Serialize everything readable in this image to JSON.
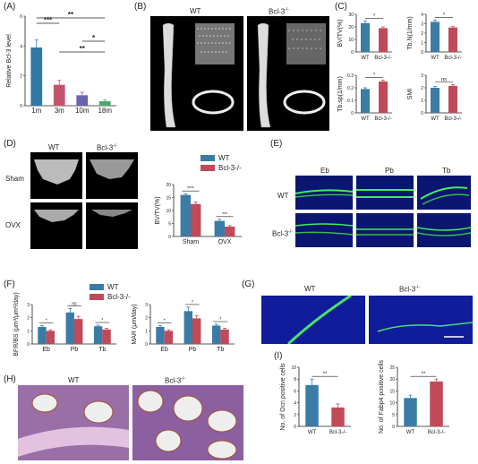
{
  "colors": {
    "wt": "#3a7ca5",
    "ko": "#c04a5a",
    "a1": "#2f78a8",
    "a2": "#c2556b",
    "a3": "#6a63b0",
    "a4": "#4aa86a"
  },
  "panel_labels": {
    "A": "(A)",
    "B": "(B)",
    "C": "(C)",
    "D": "(D)",
    "E": "(E)",
    "F": "(F)",
    "G": "(G)",
    "H": "(H)",
    "I": "(I)"
  },
  "common": {
    "wt": "WT",
    "ko": "Bcl-3",
    "ko_sup": "-/-"
  },
  "B": {
    "wt": "WT",
    "ko": "Bcl-3"
  },
  "D": {
    "col_wt": "WT",
    "col_ko": "Bcl-3",
    "row1": "Sham",
    "row2": "OVX"
  },
  "E": {
    "cols": [
      "Eb",
      "Pb",
      "Tb"
    ],
    "row1": "WT",
    "row2": "Bcl-3"
  },
  "G": {
    "wt": "WT",
    "ko": "Bcl-3"
  },
  "H": {
    "wt": "WT",
    "ko": "Bcl-3"
  },
  "legend": {
    "wt": "WT",
    "ko": "Bcl-3-/-"
  },
  "chart_data": [
    {
      "panel": "A",
      "type": "bar",
      "categories": [
        "1m",
        "3m",
        "10m",
        "18m"
      ],
      "values": [
        3.9,
        1.4,
        0.7,
        0.3
      ],
      "errors": [
        0.5,
        0.3,
        0.2,
        0.1
      ],
      "ylabel": "Relative Bcl-3 level",
      "ylim": [
        0,
        6
      ],
      "yticks": [
        0,
        2,
        4,
        6
      ],
      "sig": [
        "**",
        "***",
        "**",
        "*"
      ]
    },
    {
      "panel": "C1",
      "type": "bar",
      "categories": [
        "WT",
        "Bcl-3-/-"
      ],
      "values": [
        23,
        19
      ],
      "errors": [
        1.5,
        1
      ],
      "ylabel": "BV/TV(%)",
      "ylim": [
        0,
        30
      ],
      "yticks": [
        0,
        10,
        20,
        30
      ],
      "sig": [
        "*"
      ]
    },
    {
      "panel": "C2",
      "type": "bar",
      "categories": [
        "WT",
        "Bcl-3-/-"
      ],
      "values": [
        3.2,
        2.6
      ],
      "errors": [
        0.2,
        0.1
      ],
      "ylabel": "Tb.N(1/mm)",
      "ylim": [
        0,
        4
      ],
      "yticks": [
        0,
        1,
        2,
        3,
        4
      ],
      "sig": [
        "*"
      ]
    },
    {
      "panel": "C3",
      "type": "bar",
      "categories": [
        "WT",
        "Bcl-3-/-"
      ],
      "values": [
        0.19,
        0.25
      ],
      "errors": [
        0.01,
        0.01
      ],
      "ylabel": "Tb.sp(1/mm)",
      "ylim": [
        0,
        0.3
      ],
      "yticks": [
        0,
        0.1,
        0.2,
        0.3
      ],
      "sig": [
        "*"
      ]
    },
    {
      "panel": "C4",
      "type": "bar",
      "categories": [
        "WT",
        "Bcl-3-/-"
      ],
      "values": [
        2.0,
        2.15
      ],
      "errors": [
        0.1,
        0.1
      ],
      "ylabel": "SMI",
      "ylim": [
        0,
        3
      ],
      "yticks": [
        0,
        1,
        2,
        3
      ],
      "sig": [
        "ns"
      ]
    },
    {
      "panel": "D",
      "type": "bar",
      "categories": [
        "Sham",
        "OVX"
      ],
      "series": [
        {
          "name": "WT",
          "values": [
            16,
            6
          ]
        },
        {
          "name": "Bcl-3-/-",
          "values": [
            12.5,
            3.8
          ]
        }
      ],
      "errors": [
        [
          0.5,
          0.6
        ],
        [
          0.8,
          0.4
        ]
      ],
      "ylabel": "BV/TV(%)",
      "ylim": [
        0,
        20
      ],
      "yticks": [
        0,
        5,
        10,
        15,
        20
      ],
      "sig": [
        "****",
        "***"
      ]
    },
    {
      "panel": "F1",
      "type": "bar",
      "categories": [
        "Eb",
        "Pb",
        "Tb"
      ],
      "series": [
        {
          "name": "WT",
          "values": [
            1.3,
            2.4,
            1.35
          ]
        },
        {
          "name": "Bcl-3-/-",
          "values": [
            1.0,
            1.9,
            1.1
          ]
        }
      ],
      "errors": [
        [
          0.1,
          0.3,
          0.08
        ],
        [
          0.08,
          0.2,
          0.1
        ]
      ],
      "ylabel": "BFR/BS (μm³/μm²/day)",
      "ylim": [
        0,
        3
      ],
      "yticks": [
        0,
        1,
        2,
        3
      ],
      "sig": [
        "*",
        "ns",
        "*"
      ]
    },
    {
      "panel": "F2",
      "type": "bar",
      "categories": [
        "Eb",
        "Pb",
        "Tb"
      ],
      "series": [
        {
          "name": "WT",
          "values": [
            1.3,
            2.5,
            1.4
          ]
        },
        {
          "name": "Bcl-3-/-",
          "values": [
            1.0,
            1.95,
            1.1
          ]
        }
      ],
      "errors": [
        [
          0.1,
          0.3,
          0.1
        ],
        [
          0.08,
          0.2,
          0.1
        ]
      ],
      "ylabel": "MAR (μm/day)",
      "ylim": [
        0,
        3
      ],
      "yticks": [
        0,
        1,
        2,
        3
      ],
      "sig": [
        "*",
        "*",
        "*"
      ]
    },
    {
      "panel": "I1",
      "type": "bar",
      "categories": [
        "WT",
        "Bcl-3-/-"
      ],
      "values": [
        7,
        3.2
      ],
      "errors": [
        1,
        0.6
      ],
      "ylabel": "No. of Ocn positive cells",
      "ylim": [
        0,
        10
      ],
      "yticks": [
        0,
        2,
        4,
        6,
        8,
        10
      ],
      "sig": [
        "**"
      ]
    },
    {
      "panel": "I2",
      "type": "bar",
      "categories": [
        "WT",
        "Bcl-3-/-"
      ],
      "values": [
        12,
        19
      ],
      "errors": [
        1.2,
        1.0
      ],
      "ylabel": "No. of Fabp4 positive cells",
      "ylim": [
        0,
        25
      ],
      "yticks": [
        0,
        5,
        10,
        15,
        20,
        25
      ],
      "sig": [
        "**"
      ]
    }
  ]
}
